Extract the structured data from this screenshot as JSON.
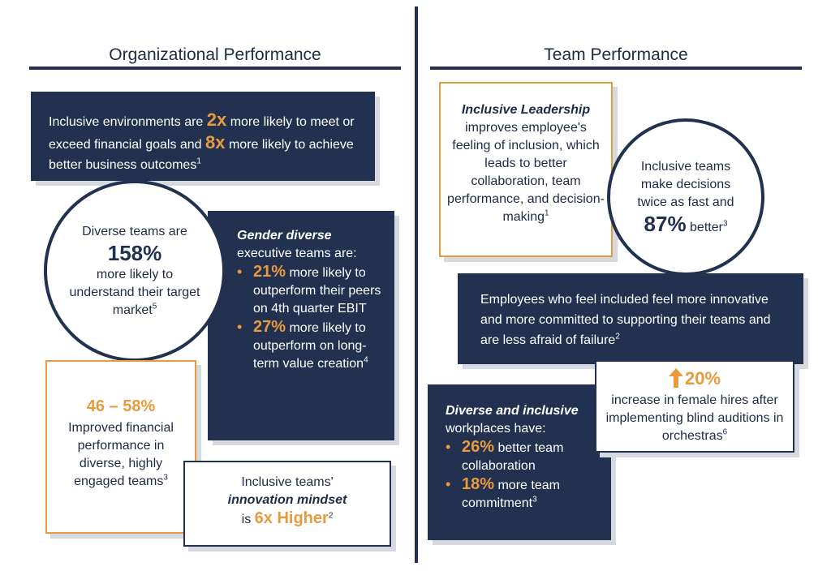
{
  "headers": {
    "left": "Organizational Performance",
    "right": "Team Performance"
  },
  "colors": {
    "navy": "#223150",
    "orange": "#e89a3c",
    "white": "#ffffff"
  },
  "org": {
    "financial": {
      "t1": "Inclusive environments are ",
      "s1": "2x",
      "t2": " more likely to meet or exceed financial goals and ",
      "s2": "8x",
      "t3": " more likely to achieve better business outcomes",
      "ref": "1"
    },
    "market": {
      "t1": "Diverse teams are",
      "stat": "158%",
      "t2": "more likely to understand their target market",
      "ref": "5"
    },
    "gender": {
      "lead": "Gender diverse",
      "t1": "executive teams are:",
      "b1_stat": "21%",
      "b1_text": " more likely to outperform their peers on 4th quarter EBIT",
      "b2_stat": "27%",
      "b2_text": " more likely to outperform on long-term value creation",
      "ref": "4"
    },
    "engaged": {
      "stat": "46 – 58%",
      "text": "Improved financial performance in diverse, highly engaged teams",
      "ref": "3"
    },
    "innovation": {
      "t1": "Inclusive teams'",
      "em": "innovation mindset",
      "t2": "is ",
      "stat": "6x Higher",
      "ref": "2"
    }
  },
  "team": {
    "leadership": {
      "lead": "Inclusive Leadership",
      "text": "improves employee's feeling of inclusion, which leads to better collaboration, team performance, and decision-making",
      "ref": "1"
    },
    "decisions": {
      "t1": "Inclusive teams make decisions twice as fast and",
      "stat": "87%",
      "t2": " better",
      "ref": "3"
    },
    "employees": {
      "text": "Employees who feel included feel more innovative and more committed to supporting their teams and are less afraid of failure",
      "ref": "2"
    },
    "workplaces": {
      "lead": "Diverse and inclusive",
      "t1": " workplaces have:",
      "b1_stat": "26%",
      "b1_text": " better team collaboration",
      "b2_stat": "18%",
      "b2_text": " more team commitment",
      "ref": "3"
    },
    "female": {
      "arrow_icon": "up-arrow-icon",
      "stat": "20%",
      "text": "increase in female hires after implementing blind auditions in orchestras",
      "ref": "6"
    }
  }
}
